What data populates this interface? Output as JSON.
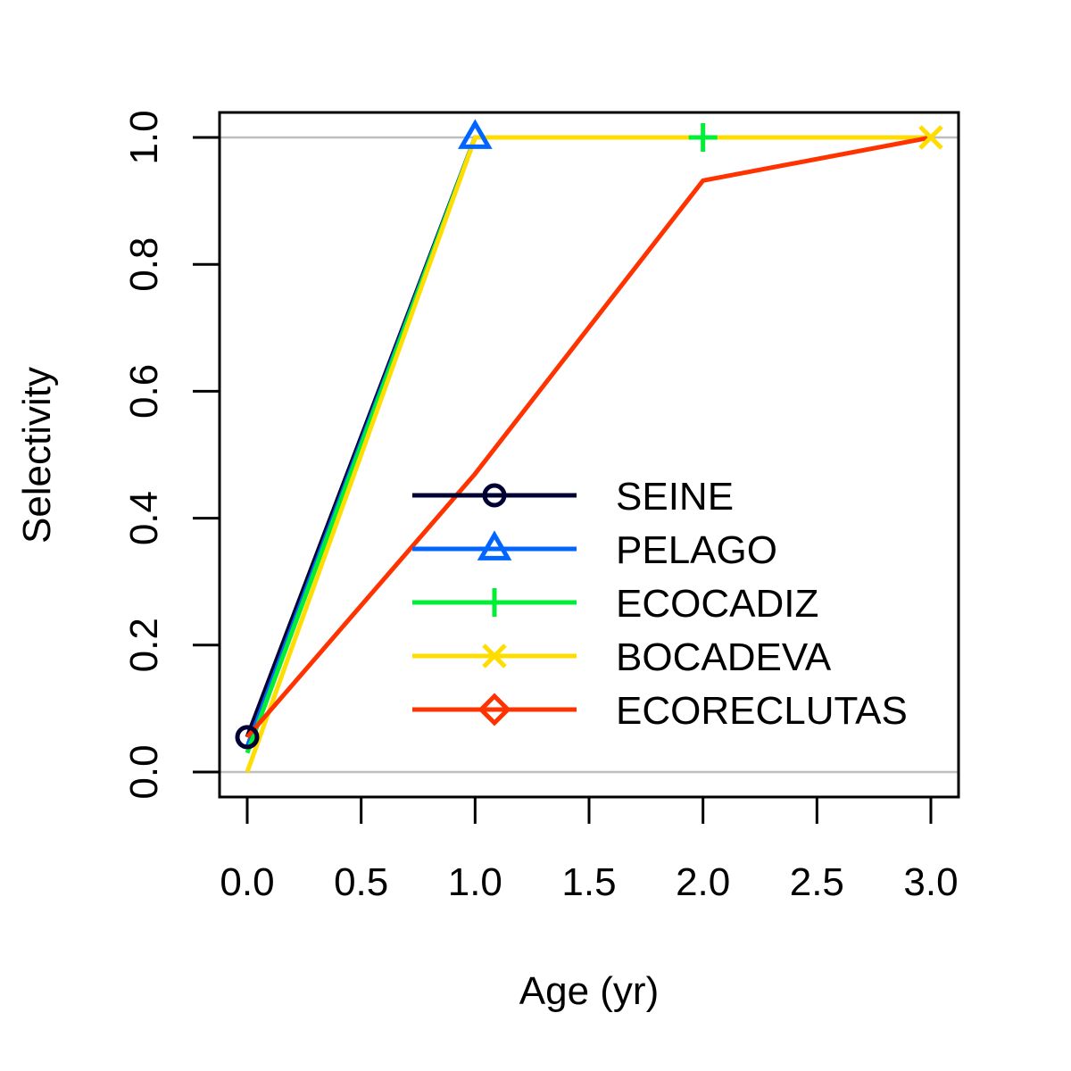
{
  "chart_data": {
    "type": "line",
    "xlabel": "Age (yr)",
    "ylabel": "Selectivity",
    "xlim": [
      0,
      3
    ],
    "ylim": [
      0,
      1
    ],
    "x_ticks": [
      "0.0",
      "0.5",
      "1.0",
      "1.5",
      "2.0",
      "2.5",
      "3.0"
    ],
    "x_tick_values": [
      0,
      0.5,
      1,
      1.5,
      2,
      2.5,
      3
    ],
    "y_ticks": [
      "0.0",
      "0.2",
      "0.4",
      "0.6",
      "0.8",
      "1.0"
    ],
    "y_tick_values": [
      0,
      0.2,
      0.4,
      0.6,
      0.8,
      1.0
    ],
    "reference_lines_y": [
      0,
      1
    ],
    "reference_line_color": "#bebebe",
    "legend_position": "bottom-right",
    "x": [
      0,
      1,
      2,
      3
    ],
    "series": [
      {
        "name": "SEINE",
        "color": "#000033",
        "marker": "circle",
        "values": [
          0.055,
          1.0,
          1.0,
          1.0
        ],
        "marker_points": [
          0
        ]
      },
      {
        "name": "PELAGO",
        "color": "#0066ff",
        "marker": "triangle",
        "values": [
          0.04,
          1.0,
          1.0,
          1.0
        ],
        "marker_points": [
          1
        ]
      },
      {
        "name": "ECOCADIZ",
        "color": "#00ee33",
        "marker": "plus",
        "values": [
          0.03,
          1.0,
          1.0,
          1.0
        ],
        "marker_points": [
          2
        ]
      },
      {
        "name": "BOCADEVA",
        "color": "#ffdd00",
        "marker": "cross",
        "values": [
          0.0,
          1.0,
          1.0,
          1.0
        ],
        "marker_points": [
          3
        ]
      },
      {
        "name": "ECORECLUTAS",
        "color": "#ff3300",
        "marker": "diamond",
        "values": [
          0.055,
          0.47,
          0.932,
          1.0
        ],
        "marker_points": []
      }
    ]
  }
}
